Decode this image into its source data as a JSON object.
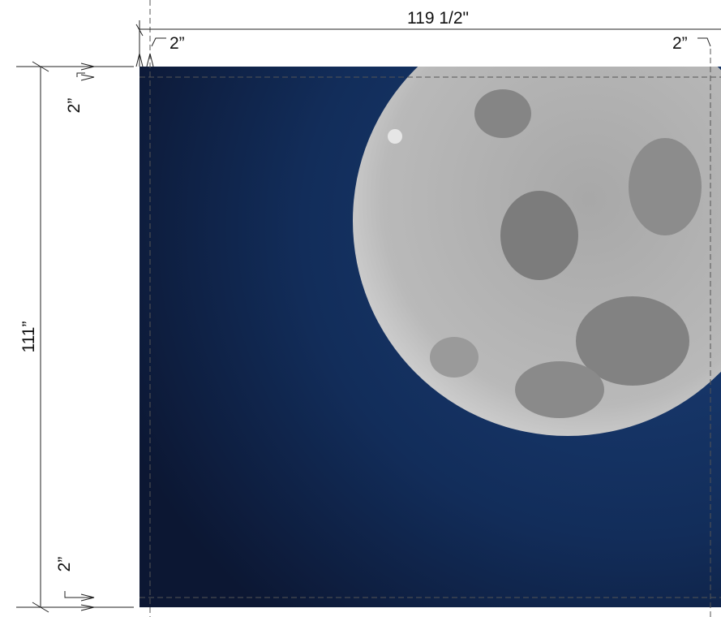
{
  "dimensions": {
    "width": "119 1/2\"",
    "height": "111”",
    "bleed_top_left": "2”",
    "bleed_top_right": "2”",
    "bleed_left_top": "2”",
    "bleed_left_bottom": "2”"
  }
}
